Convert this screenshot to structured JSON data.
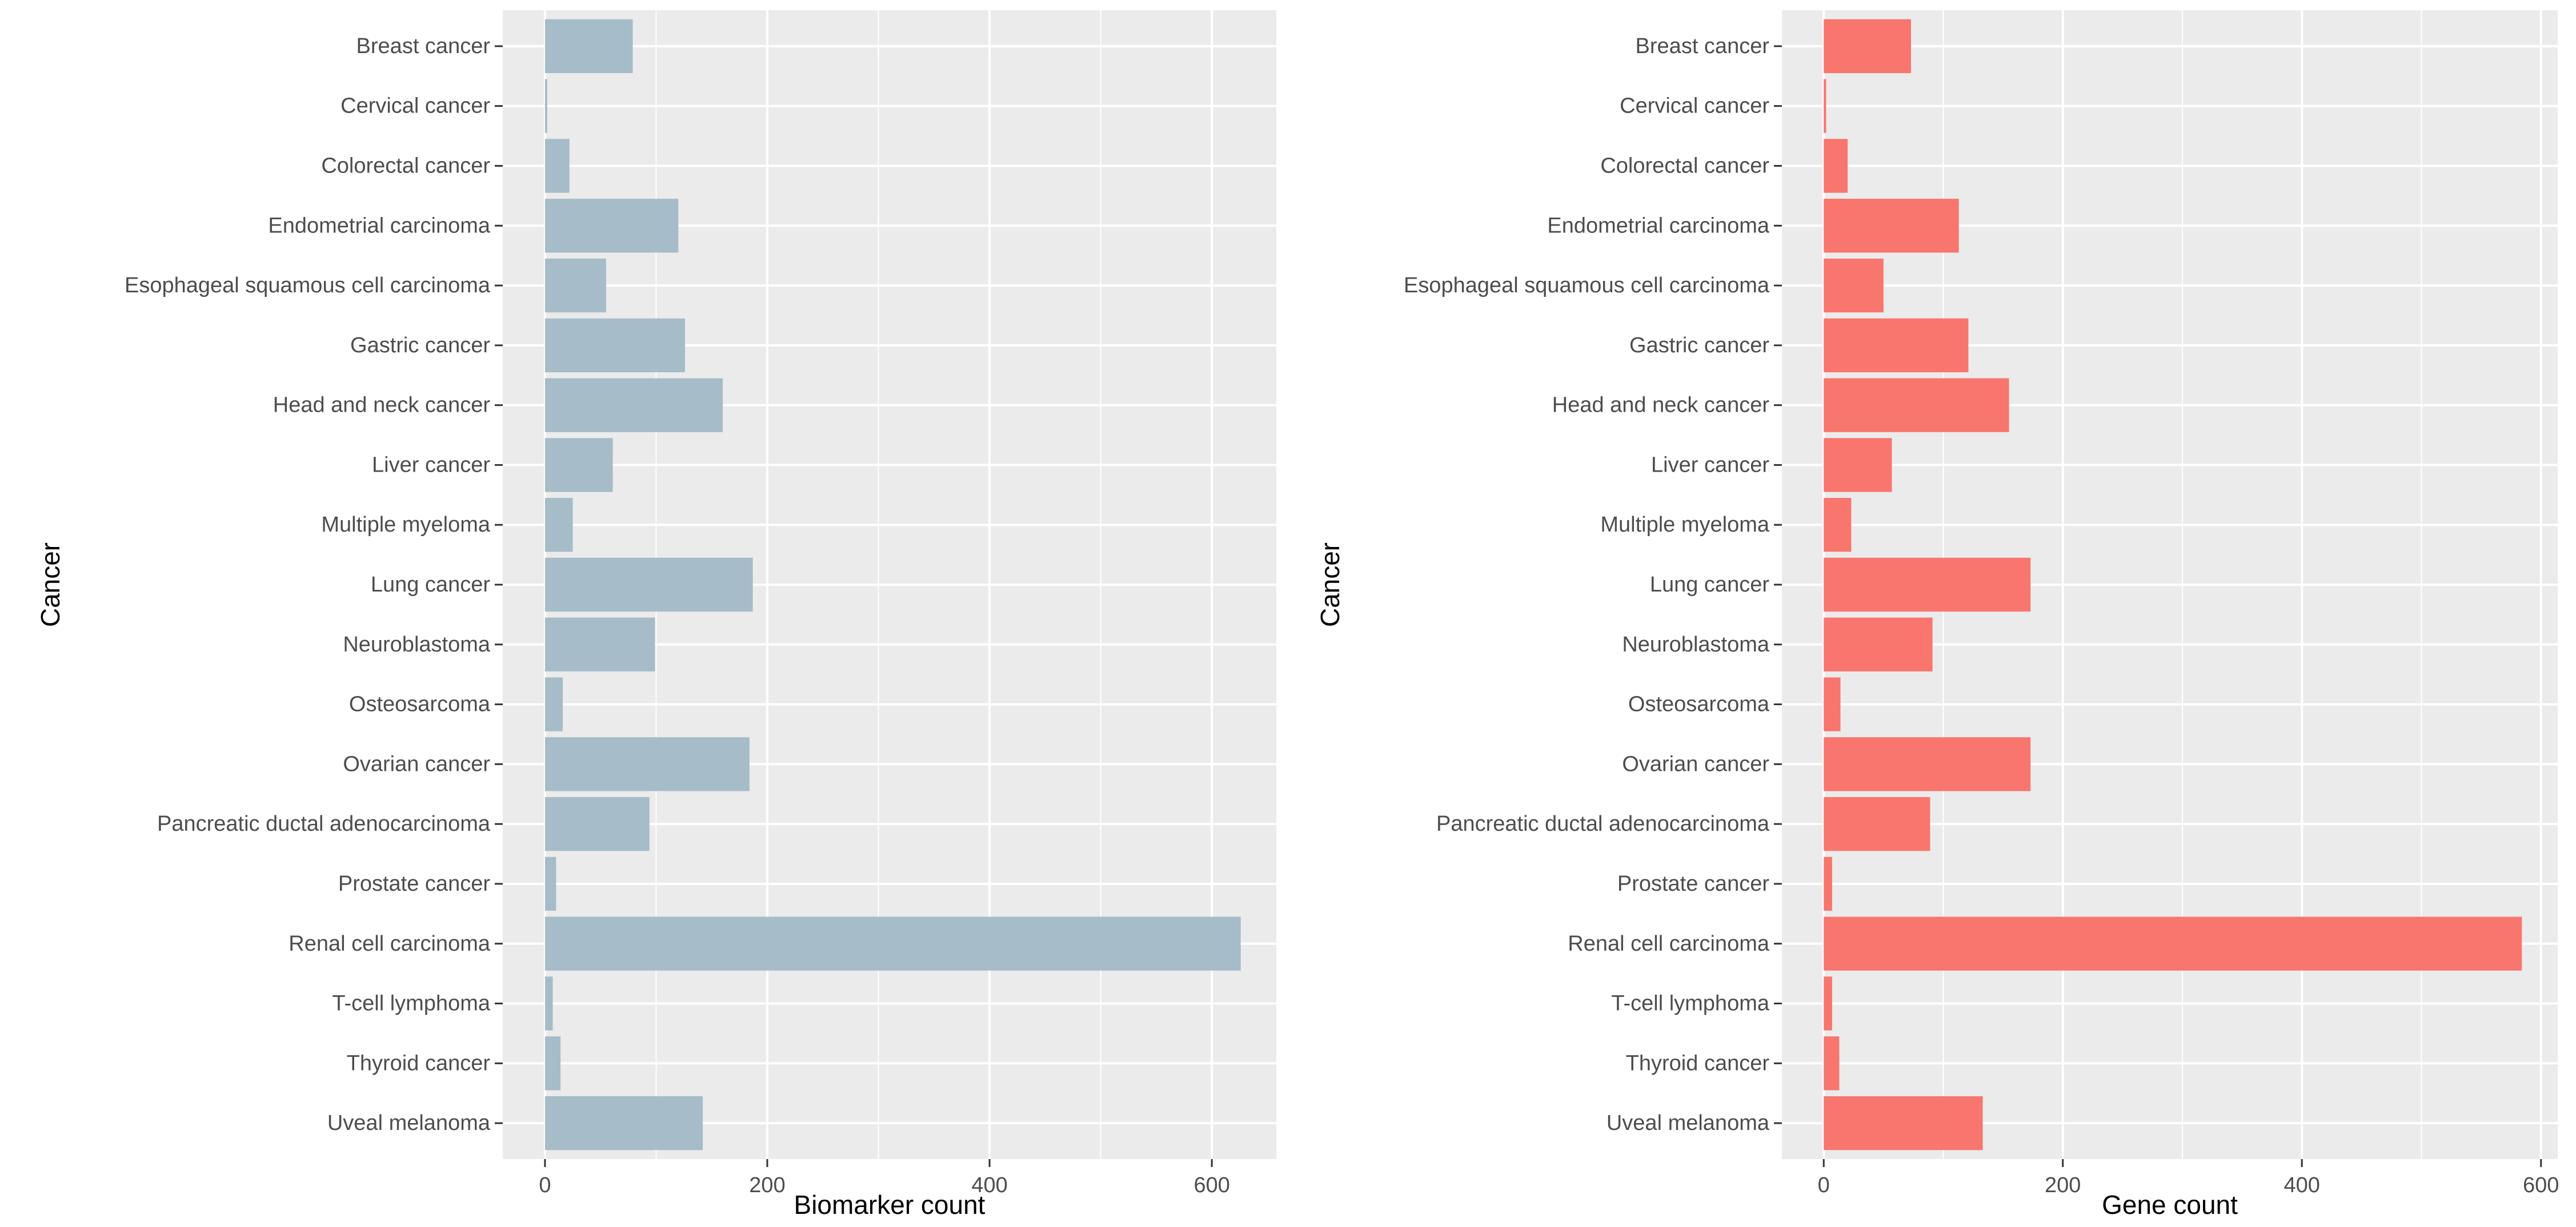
{
  "chart_data": [
    {
      "type": "bar",
      "orientation": "horizontal",
      "xlabel": "Biomarker  count",
      "ylabel": "Cancer",
      "xlim": [
        -38,
        658
      ],
      "xticks": [
        0,
        200,
        400,
        600
      ],
      "grid": true,
      "bar_color": "#a6bcc8",
      "categories": [
        "Breast cancer",
        "Cervical cancer",
        "Colorectal cancer",
        "Endometrial carcinoma",
        "Esophageal squamous cell carcinoma",
        "Gastric cancer",
        "Head and neck cancer",
        "Liver cancer",
        "Multiple myeloma",
        "Lung cancer",
        "Neuroblastoma",
        "Osteosarcoma",
        "Ovarian cancer",
        "Pancreatic ductal adenocarcinoma",
        "Prostate cancer",
        "Renal cell carcinoma",
        "T-cell lymphoma",
        "Thyroid cancer",
        "Uveal melanoma"
      ],
      "values": [
        79,
        2,
        22,
        120,
        55,
        126,
        160,
        61,
        25,
        187,
        99,
        16,
        184,
        94,
        10,
        626,
        7,
        14,
        142
      ]
    },
    {
      "type": "bar",
      "orientation": "horizontal",
      "xlabel": "Gene  count",
      "ylabel": "Cancer",
      "xlim": [
        -35,
        614
      ],
      "xticks": [
        0,
        200,
        400,
        600
      ],
      "grid": true,
      "bar_color": "#f8766d",
      "categories": [
        "Breast cancer",
        "Cervical cancer",
        "Colorectal cancer",
        "Endometrial carcinoma",
        "Esophageal squamous cell carcinoma",
        "Gastric cancer",
        "Head and neck cancer",
        "Liver cancer",
        "Multiple myeloma",
        "Lung cancer",
        "Neuroblastoma",
        "Osteosarcoma",
        "Ovarian cancer",
        "Pancreatic ductal adenocarcinoma",
        "Prostate cancer",
        "Renal cell carcinoma",
        "T-cell lymphoma",
        "Thyroid cancer",
        "Uveal melanoma"
      ],
      "values": [
        73,
        2,
        20,
        113,
        50,
        121,
        155,
        57,
        23,
        173,
        91,
        14,
        173,
        89,
        7,
        584,
        7,
        13,
        133
      ]
    }
  ]
}
